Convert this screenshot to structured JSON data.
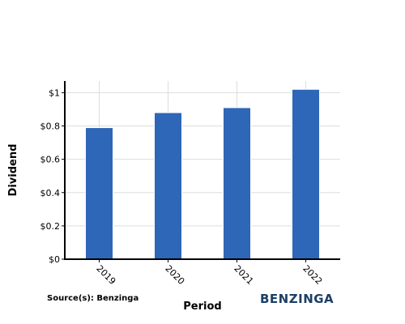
{
  "chart_data": {
    "type": "bar",
    "categories": [
      "2019",
      "2020",
      "2021",
      "2022"
    ],
    "values": [
      0.79,
      0.88,
      0.91,
      1.02
    ],
    "xlabel": "Period",
    "ylabel": "Dividend",
    "ylim": [
      0,
      1.07
    ],
    "yticks": [
      0,
      0.2,
      0.4,
      0.6,
      0.8,
      1
    ],
    "ytick_labels": [
      "$0",
      "$0.2",
      "$0.4",
      "$0.6",
      "$0.8",
      "$1"
    ],
    "bar_color": "#2e66b8",
    "grid": true
  },
  "footer": {
    "source": "Source(s): Benzinga",
    "brand": "BENZINGA"
  }
}
